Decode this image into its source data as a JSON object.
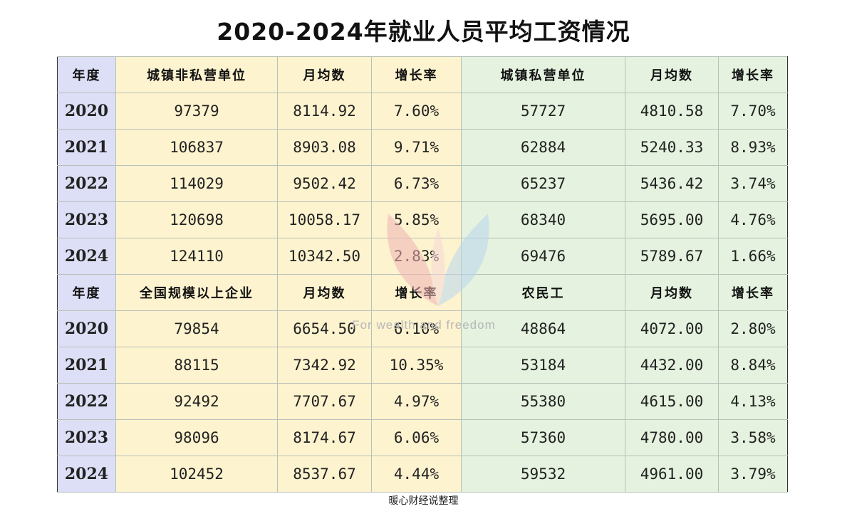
{
  "title": "2020-2024年就业人员平均工资情况",
  "watermark_text": "For wealth and freedom",
  "footer": "暖心财经说整理",
  "colors": {
    "year_col": "#dcdff5",
    "left_block": "#fdf3cf",
    "right_block": "#e4f2df"
  },
  "sections": [
    {
      "headers": [
        "年度",
        "城镇非私营单位",
        "月均数",
        "增长率",
        "城镇私营单位",
        "月均数",
        "增长率"
      ],
      "rows": [
        [
          "2020",
          "97379",
          "8114.92",
          "7.60%",
          "57727",
          "4810.58",
          "7.70%"
        ],
        [
          "2021",
          "106837",
          "8903.08",
          "9.71%",
          "62884",
          "5240.33",
          "8.93%"
        ],
        [
          "2022",
          "114029",
          "9502.42",
          "6.73%",
          "65237",
          "5436.42",
          "3.74%"
        ],
        [
          "2023",
          "120698",
          "10058.17",
          "5.85%",
          "68340",
          "5695.00",
          "4.76%"
        ],
        [
          "2024",
          "124110",
          "10342.50",
          "2.83%",
          "69476",
          "5789.67",
          "1.66%"
        ]
      ]
    },
    {
      "headers": [
        "年度",
        "全国规模以上企业",
        "月均数",
        "增长率",
        "农民工",
        "月均数",
        "增长率"
      ],
      "rows": [
        [
          "2020",
          "79854",
          "6654.50",
          "6.10%",
          "48864",
          "4072.00",
          "2.80%"
        ],
        [
          "2021",
          "88115",
          "7342.92",
          "10.35%",
          "53184",
          "4432.00",
          "8.84%"
        ],
        [
          "2022",
          "92492",
          "7707.67",
          "4.97%",
          "55380",
          "4615.00",
          "4.13%"
        ],
        [
          "2023",
          "98096",
          "8174.67",
          "6.06%",
          "57360",
          "4780.00",
          "3.58%"
        ],
        [
          "2024",
          "102452",
          "8537.67",
          "4.44%",
          "59532",
          "4961.00",
          "3.79%"
        ]
      ]
    }
  ]
}
